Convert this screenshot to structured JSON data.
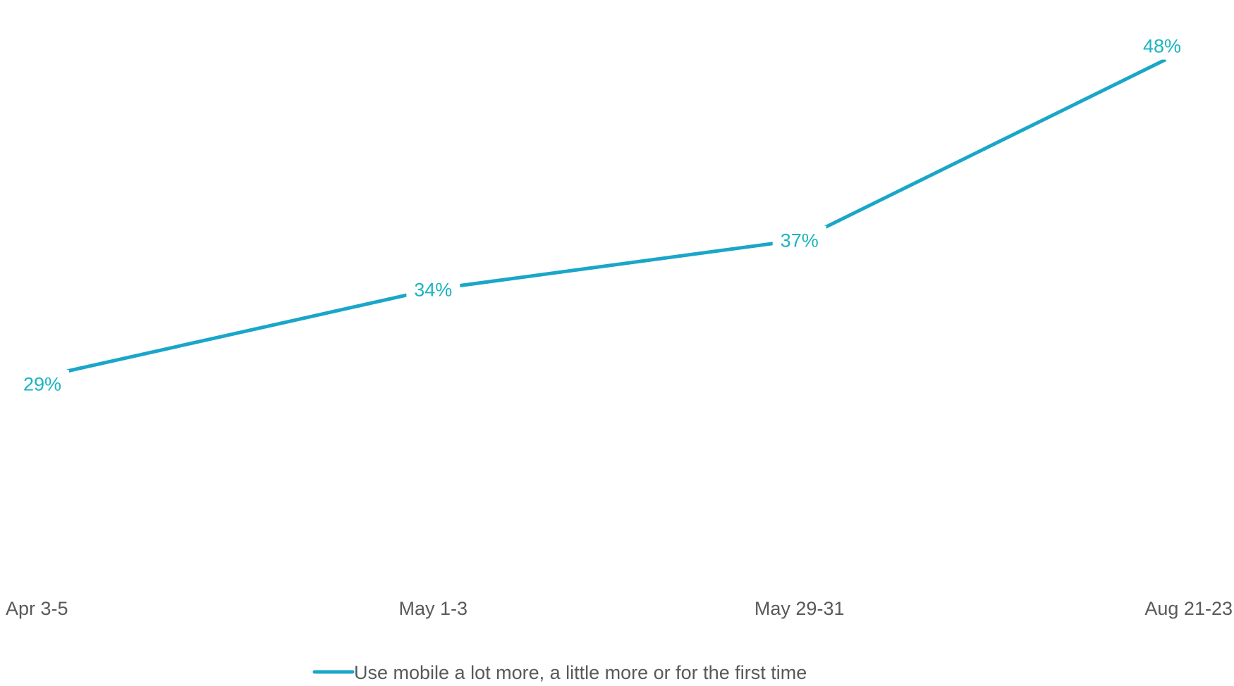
{
  "chart_data": {
    "type": "line",
    "title": "",
    "xlabel": "",
    "ylabel": "",
    "categories": [
      "Apr 3-5",
      "May 1-3",
      "May 29-31",
      "Aug 21-23"
    ],
    "series": [
      {
        "name": "Use mobile a lot more, a little more or for the first time",
        "values": [
          29,
          34,
          37,
          48
        ],
        "labels": [
          "29%",
          "34%",
          "37%",
          "48%"
        ],
        "color": "#1aa6c8",
        "label_color": "#1ab5be"
      }
    ],
    "ylim": [
      22,
      50
    ],
    "grid": false,
    "legend": "bottom-center",
    "axis_label_color": "#595959"
  }
}
